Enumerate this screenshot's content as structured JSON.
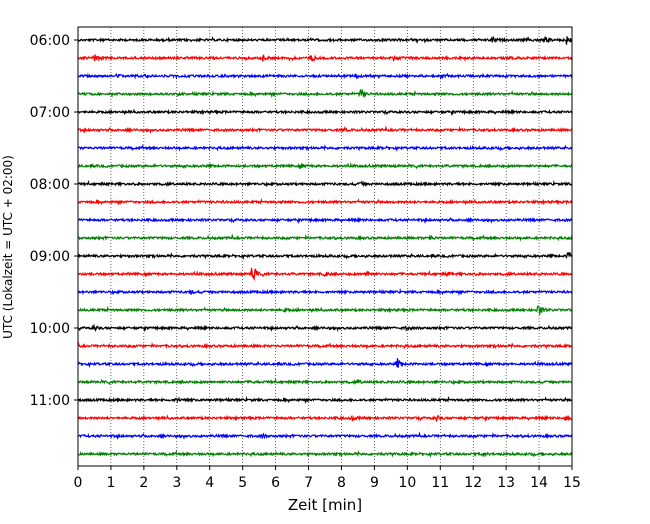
{
  "chart_data": {
    "type": "line",
    "title": "",
    "xlabel": "Zeit  [min]",
    "ylabel": "UTC (Lokalzeit = UTC + 02:00)",
    "xlim": [
      0,
      15
    ],
    "x_ticks": [
      0,
      1,
      2,
      3,
      4,
      5,
      6,
      7,
      8,
      9,
      10,
      11,
      12,
      13,
      14,
      15
    ],
    "x_tick_labels": [
      "0",
      "1",
      "2",
      "3",
      "4",
      "5",
      "6",
      "7",
      "8",
      "9",
      "10",
      "11",
      "12",
      "13",
      "14",
      "15"
    ],
    "y_tick_labels": [
      "06:00",
      "07:00",
      "08:00",
      "09:00",
      "10:00",
      "11:00"
    ],
    "grid": {
      "x": true,
      "y": false
    },
    "trace_minutes_each": 15,
    "traces": [
      {
        "start": "06:00",
        "color": "black",
        "events": [
          {
            "t": 12.6,
            "amp": 0.22
          },
          {
            "t": 14.2,
            "amp": 0.25
          },
          {
            "t": 14.85,
            "amp": 0.45
          }
        ]
      },
      {
        "start": "06:15",
        "color": "red",
        "events": [
          {
            "t": 0.5,
            "amp": 0.45
          },
          {
            "t": 5.6,
            "amp": 0.35
          },
          {
            "t": 7.1,
            "amp": 0.2
          },
          {
            "t": 9.6,
            "amp": 0.18
          }
        ]
      },
      {
        "start": "06:30",
        "color": "blue",
        "events": [
          {
            "t": 1.2,
            "amp": 0.15
          },
          {
            "t": 8.4,
            "amp": 0.15
          }
        ]
      },
      {
        "start": "06:45",
        "color": "green",
        "events": [
          {
            "t": 8.6,
            "amp": 0.45
          }
        ]
      },
      {
        "start": "07:00",
        "color": "black",
        "events": []
      },
      {
        "start": "07:15",
        "color": "red",
        "events": [
          {
            "t": 8.1,
            "amp": 0.12
          }
        ]
      },
      {
        "start": "07:30",
        "color": "blue",
        "events": []
      },
      {
        "start": "07:45",
        "color": "green",
        "events": [
          {
            "t": 6.8,
            "amp": 0.15
          }
        ]
      },
      {
        "start": "08:00",
        "color": "black",
        "events": [
          {
            "t": 8.6,
            "amp": 0.15
          }
        ]
      },
      {
        "start": "08:15",
        "color": "red",
        "events": []
      },
      {
        "start": "08:30",
        "color": "blue",
        "events": []
      },
      {
        "start": "08:45",
        "color": "green",
        "events": [
          {
            "t": 10.7,
            "amp": 0.2
          }
        ]
      },
      {
        "start": "09:00",
        "color": "black",
        "events": [
          {
            "t": 14.9,
            "amp": 0.4
          }
        ]
      },
      {
        "start": "09:15",
        "color": "red",
        "events": [
          {
            "t": 5.3,
            "amp": 1.0
          },
          {
            "t": 7.5,
            "amp": 0.2
          },
          {
            "t": 8.8,
            "amp": 0.25
          },
          {
            "t": 11.2,
            "amp": 0.15
          }
        ]
      },
      {
        "start": "09:30",
        "color": "blue",
        "events": [
          {
            "t": 3.4,
            "amp": 0.15
          }
        ]
      },
      {
        "start": "09:45",
        "color": "green",
        "events": [
          {
            "t": 6.3,
            "amp": 0.15
          },
          {
            "t": 14.0,
            "amp": 0.6
          }
        ]
      },
      {
        "start": "10:00",
        "color": "black",
        "events": [
          {
            "t": 0.5,
            "amp": 0.2
          },
          {
            "t": 10.0,
            "amp": 0.15
          }
        ]
      },
      {
        "start": "10:15",
        "color": "red",
        "events": []
      },
      {
        "start": "10:30",
        "color": "blue",
        "events": [
          {
            "t": 9.7,
            "amp": 0.35
          }
        ]
      },
      {
        "start": "10:45",
        "color": "green",
        "events": [
          {
            "t": 5.3,
            "amp": 0.15
          },
          {
            "t": 8.5,
            "amp": 0.15
          }
        ]
      },
      {
        "start": "11:00",
        "color": "black",
        "events": [
          {
            "t": 3.0,
            "amp": 0.2
          }
        ]
      },
      {
        "start": "11:15",
        "color": "red",
        "events": [
          {
            "t": 8.3,
            "amp": 0.2
          },
          {
            "t": 10.9,
            "amp": 0.2
          },
          {
            "t": 14.8,
            "amp": 0.3
          }
        ]
      },
      {
        "start": "11:30",
        "color": "blue",
        "events": [
          {
            "t": 5.6,
            "amp": 0.15
          }
        ]
      },
      {
        "start": "11:45",
        "color": "green",
        "events": [
          {
            "t": 12.3,
            "amp": 0.15
          }
        ]
      }
    ]
  }
}
